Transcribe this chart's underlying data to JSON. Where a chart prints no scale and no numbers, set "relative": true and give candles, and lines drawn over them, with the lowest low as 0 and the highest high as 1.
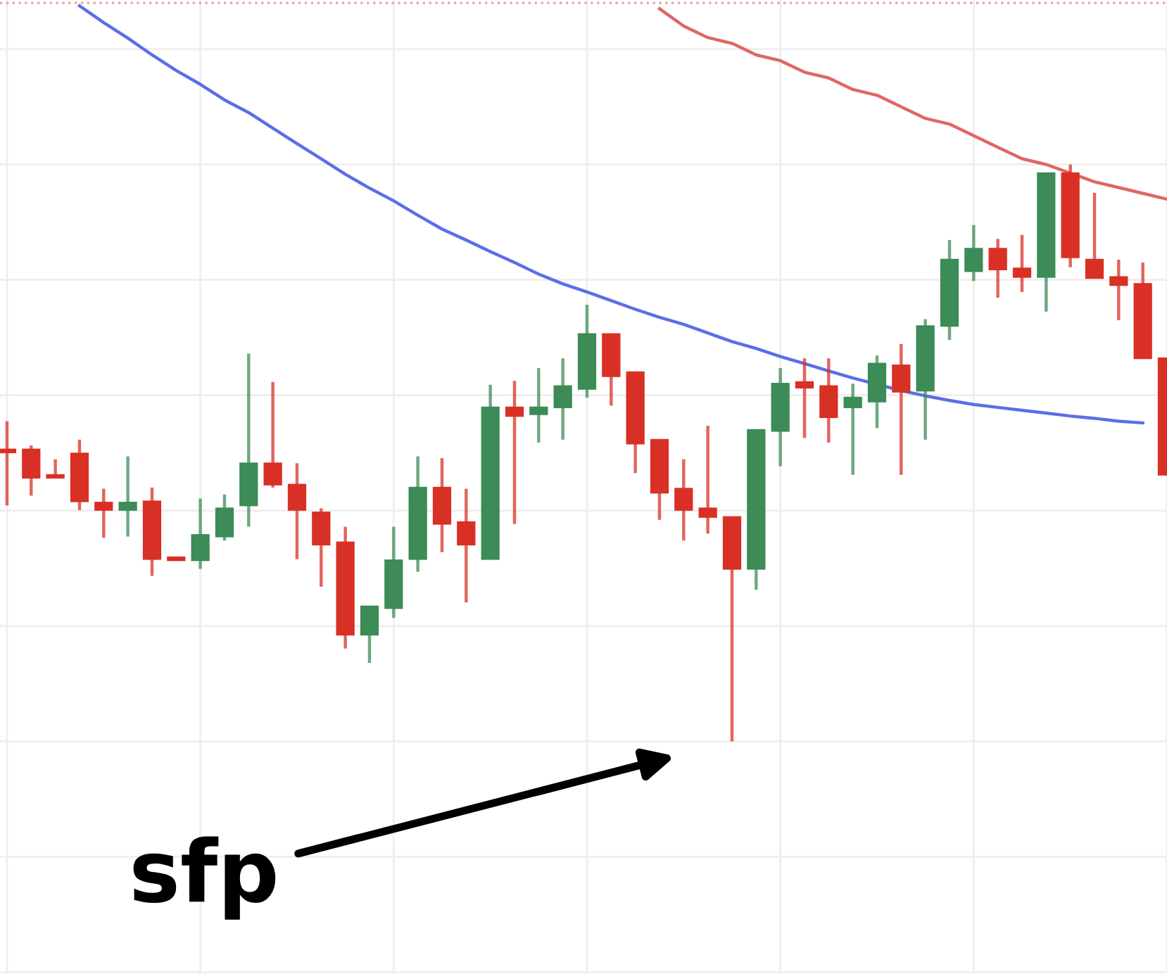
{
  "chart_data": {
    "type": "candlestick",
    "relative": true,
    "grid": true,
    "categories": [
      null,
      null,
      null,
      null,
      null,
      null,
      null,
      null,
      null,
      null,
      null,
      null,
      null,
      null,
      null,
      null,
      null,
      null,
      null,
      null,
      null,
      null,
      null,
      null,
      null,
      null,
      null,
      null,
      null,
      null,
      null,
      null,
      null,
      null,
      null,
      null,
      null,
      null,
      null,
      null,
      null,
      null,
      null,
      null,
      null,
      null,
      null,
      null,
      null
    ],
    "ohlc": [
      [
        0.506,
        0.555,
        0.409,
        0.501
      ],
      [
        0.506,
        0.513,
        0.426,
        0.457
      ],
      [
        0.462,
        0.489,
        0.457,
        0.457
      ],
      [
        0.499,
        0.523,
        0.401,
        0.416
      ],
      [
        0.414,
        0.438,
        0.353,
        0.401
      ],
      [
        0.401,
        0.494,
        0.355,
        0.414
      ],
      [
        0.416,
        0.44,
        0.287,
        0.316
      ],
      [
        0.319,
        0.319,
        0.314,
        0.314
      ],
      [
        0.314,
        0.421,
        0.299,
        0.358
      ],
      [
        0.355,
        0.428,
        0.348,
        0.404
      ],
      [
        0.409,
        0.672,
        0.372,
        0.482
      ],
      [
        0.482,
        0.623,
        0.44,
        0.445
      ],
      [
        0.445,
        0.482,
        0.316,
        0.401
      ],
      [
        0.397,
        0.404,
        0.268,
        0.341
      ],
      [
        0.345,
        0.372,
        0.161,
        0.185
      ],
      [
        0.185,
        0.234,
        0.136,
        0.234
      ],
      [
        0.231,
        0.372,
        0.214,
        0.314
      ],
      [
        0.316,
        0.494,
        0.294,
        0.44
      ],
      [
        0.44,
        0.491,
        0.328,
        0.377
      ],
      [
        0.38,
        0.438,
        0.241,
        0.341
      ],
      [
        0.316,
        0.618,
        0.316,
        0.579
      ],
      [
        0.579,
        0.625,
        0.377,
        0.564
      ],
      [
        0.567,
        0.647,
        0.518,
        0.579
      ],
      [
        0.579,
        0.664,
        0.523,
        0.616
      ],
      [
        0.611,
        0.757,
        0.596,
        0.706
      ],
      [
        0.706,
        0.706,
        0.582,
        0.633
      ],
      [
        0.64,
        0.64,
        0.465,
        0.516
      ],
      [
        0.523,
        0.523,
        0.384,
        0.431
      ],
      [
        0.438,
        0.489,
        0.348,
        0.401
      ],
      [
        0.404,
        0.547,
        0.36,
        0.389
      ],
      [
        0.389,
        0.389,
        0.0,
        0.299
      ],
      [
        0.299,
        0.54,
        0.263,
        0.54
      ],
      [
        0.538,
        0.647,
        0.477,
        0.62
      ],
      [
        0.623,
        0.664,
        0.526,
        0.613
      ],
      [
        0.616,
        0.664,
        0.518,
        0.562
      ],
      [
        0.579,
        0.62,
        0.462,
        0.596
      ],
      [
        0.589,
        0.669,
        0.543,
        0.655
      ],
      [
        0.652,
        0.689,
        0.462,
        0.606
      ],
      [
        0.608,
        0.732,
        0.523,
        0.72
      ],
      [
        0.72,
        0.869,
        0.696,
        0.835
      ],
      [
        0.815,
        0.895,
        0.798,
        0.854
      ],
      [
        0.854,
        0.871,
        0.769,
        0.818
      ],
      [
        0.82,
        0.878,
        0.779,
        0.805
      ],
      [
        0.805,
        0.985,
        0.745,
        0.985
      ],
      [
        0.985,
        1.0,
        0.822,
        0.839
      ],
      [
        0.835,
        0.951,
        0.803,
        0.803
      ],
      [
        0.805,
        0.835,
        0.73,
        0.791
      ],
      [
        0.793,
        0.83,
        0.664,
        0.664
      ],
      [
        0.664,
        0.664,
        0.462,
        0.462
      ]
    ],
    "colors": [
      "#d93025",
      "#d93025",
      "#d93025",
      "#d93025",
      "#d93025",
      "#3d8b57",
      "#d93025",
      "#d93025",
      "#3d8b57",
      "#3d8b57",
      "#3d8b57",
      "#d93025",
      "#d93025",
      "#d93025",
      "#d93025",
      "#3d8b57",
      "#3d8b57",
      "#3d8b57",
      "#d93025",
      "#d93025",
      "#3d8b57",
      "#d93025",
      "#3d8b57",
      "#3d8b57",
      "#3d8b57",
      "#d93025",
      "#d93025",
      "#d93025",
      "#d93025",
      "#d93025",
      "#d93025",
      "#3d8b57",
      "#3d8b57",
      "#d93025",
      "#d93025",
      "#3d8b57",
      "#3d8b57",
      "#d93025",
      "#3d8b57",
      "#3d8b57",
      "#3d8b57",
      "#d93025",
      "#d93025",
      "#3d8b57",
      "#d93025",
      "#d93025",
      "#d93025",
      "#d93025",
      "#d93025"
    ],
    "series": [
      {
        "type": "line",
        "color": "#5b6ee8",
        "values": [
          null,
          null,
          null,
          1.275,
          1.246,
          1.219,
          1.19,
          1.163,
          1.139,
          1.112,
          1.09,
          1.063,
          1.036,
          1.01,
          0.983,
          0.959,
          0.937,
          0.912,
          0.888,
          0.869,
          0.849,
          0.83,
          0.81,
          0.793,
          0.779,
          0.764,
          0.749,
          0.735,
          0.723,
          0.708,
          0.693,
          0.681,
          0.667,
          0.655,
          0.642,
          0.63,
          null,
          0.608,
          0.599,
          0.591,
          0.584,
          0.579,
          0.574,
          0.569,
          0.564,
          0.56,
          0.555,
          0.552,
          null
        ]
      },
      {
        "type": "line",
        "color": "#e06666",
        "values": [
          null,
          null,
          null,
          null,
          null,
          null,
          null,
          null,
          null,
          null,
          null,
          null,
          null,
          null,
          null,
          null,
          null,
          null,
          null,
          null,
          null,
          null,
          null,
          null,
          null,
          null,
          null,
          1.27,
          1.24,
          1.22,
          1.21,
          1.19,
          1.18,
          1.16,
          1.15,
          1.13,
          1.12,
          1.1,
          1.08,
          1.07,
          1.05,
          1.03,
          1.01,
          1.0,
          null,
          0.97,
          0.96,
          0.95,
          0.94
        ]
      }
    ],
    "ref_lines": [
      {
        "axis": "y",
        "value": 1.28,
        "color": "#f2a0a0",
        "line_style": "dotted"
      }
    ],
    "annotations": [
      "sfp"
    ]
  }
}
